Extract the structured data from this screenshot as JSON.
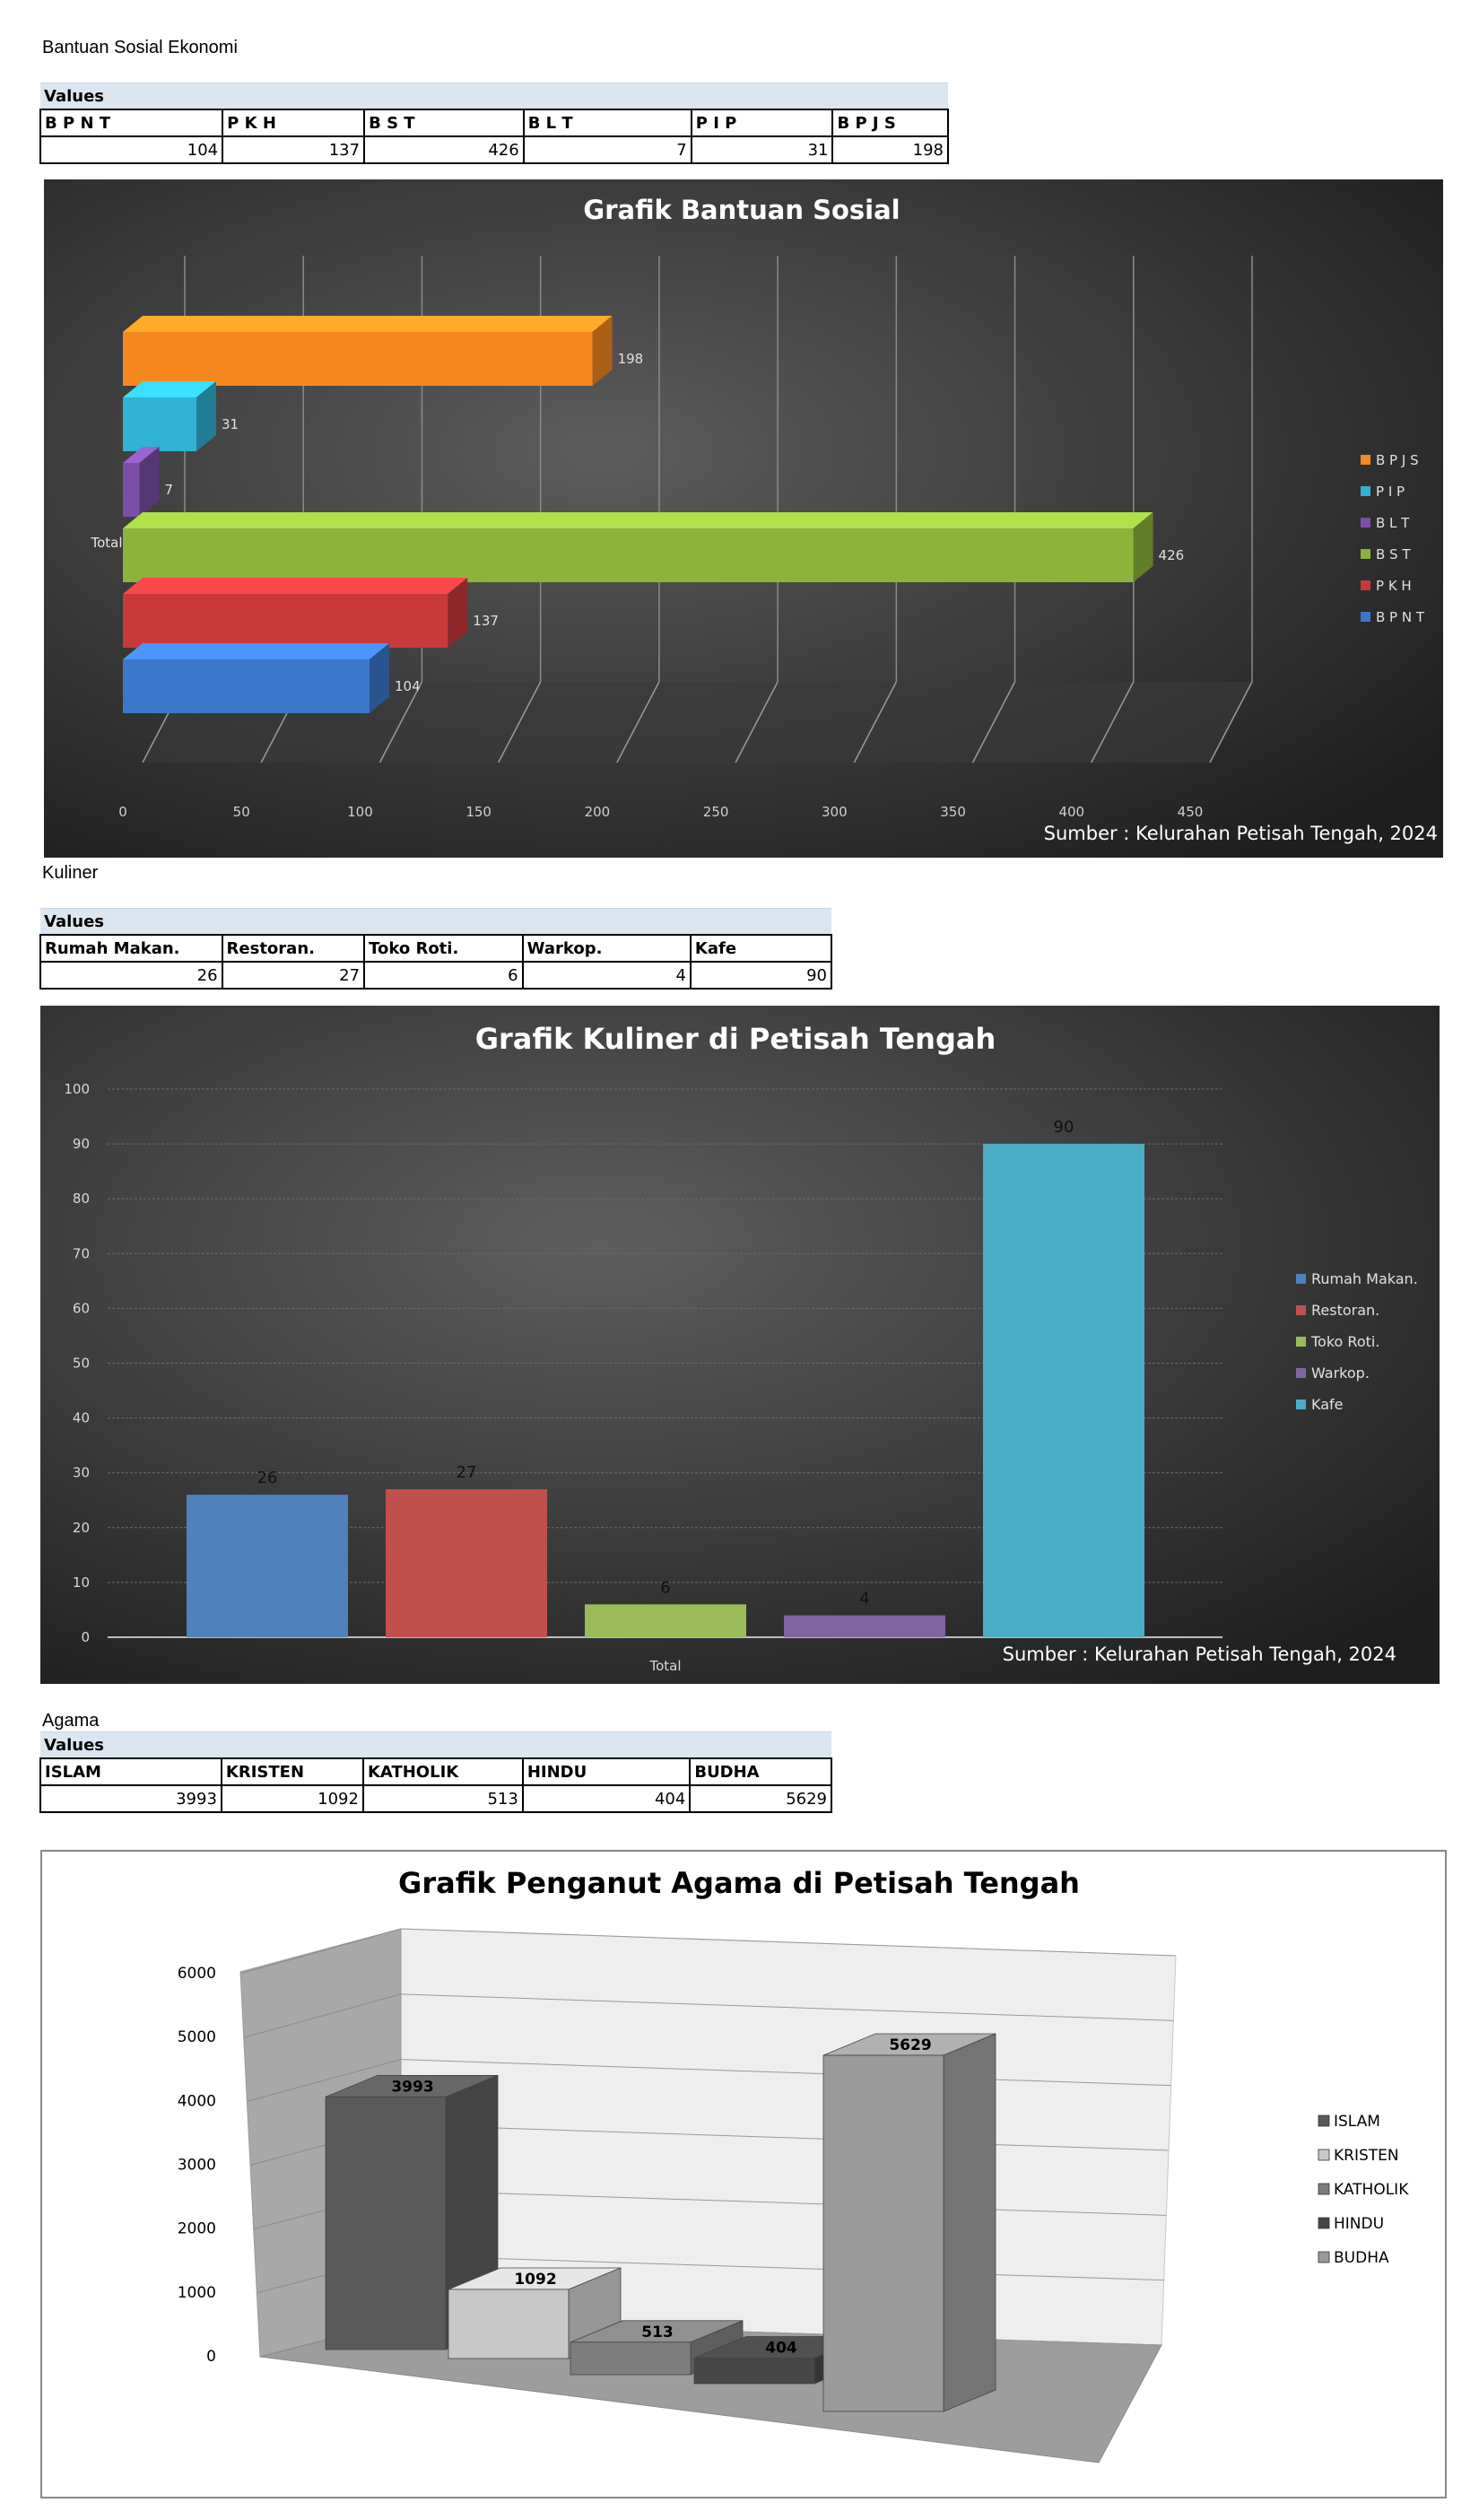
{
  "sections": [
    {
      "title": "Bantuan Sosial Ekonomi",
      "values_label": "Values",
      "headers": [
        "B P N T",
        "P K H",
        "B S T",
        "B L T",
        "P I P",
        "B P J S"
      ],
      "values": [
        "104",
        "137",
        "426",
        "7",
        "31",
        "198"
      ]
    },
    {
      "title": "Kuliner",
      "values_label": "Values",
      "headers": [
        "Rumah Makan.",
        "Restoran.",
        "Toko Roti.",
        "Warkop.",
        "Kafe"
      ],
      "values": [
        "26",
        "27",
        "6",
        "4",
        "90"
      ]
    },
    {
      "title": "Agama",
      "values_label": "Values",
      "headers": [
        "ISLAM",
        "KRISTEN",
        "KATHOLIK",
        "HINDU",
        "BUDHA"
      ],
      "values": [
        "3993",
        "1092",
        "513",
        "404",
        "5629"
      ]
    }
  ],
  "chart_data": [
    {
      "type": "bar",
      "orientation": "horizontal",
      "title": "Grafik Bantuan Sosial",
      "category_label": "Total",
      "series": [
        {
          "name": "B P N T",
          "values": [
            104
          ],
          "color": "#3b78c9"
        },
        {
          "name": "P K H",
          "values": [
            137
          ],
          "color": "#c8393b"
        },
        {
          "name": "B S T",
          "values": [
            426
          ],
          "color": "#8cb43a"
        },
        {
          "name": "B L T",
          "values": [
            7
          ],
          "color": "#7a4fa8"
        },
        {
          "name": "P I P",
          "values": [
            31
          ],
          "color": "#2fb2d6"
        },
        {
          "name": "B P J S",
          "values": [
            198
          ],
          "color": "#f5891f"
        }
      ],
      "xlim": [
        0,
        450
      ],
      "xticks": [
        "0",
        "50",
        "100",
        "150",
        "200",
        "250",
        "300",
        "350",
        "400",
        "450"
      ],
      "grid": true,
      "legend": "right",
      "source": "Sumber : Kelurahan Petisah Tengah, 2024"
    },
    {
      "type": "bar",
      "title": "Grafik Kuliner di Petisah Tengah",
      "category_label": "Total",
      "series": [
        {
          "name": "Rumah Makan.",
          "values": [
            26
          ],
          "color": "#4f81bd"
        },
        {
          "name": "Restoran.",
          "values": [
            27
          ],
          "color": "#c0504d"
        },
        {
          "name": "Toko Roti.",
          "values": [
            6
          ],
          "color": "#9bbb59"
        },
        {
          "name": "Warkop.",
          "values": [
            4
          ],
          "color": "#8064a2"
        },
        {
          "name": "Kafe",
          "values": [
            90
          ],
          "color": "#4bacc6"
        }
      ],
      "ylim": [
        0,
        100
      ],
      "yticks": [
        "0",
        "10",
        "20",
        "30",
        "40",
        "50",
        "60",
        "70",
        "80",
        "90",
        "100"
      ],
      "grid": true,
      "legend": "right",
      "source": "Sumber : Kelurahan Petisah Tengah, 2024"
    },
    {
      "type": "bar",
      "style": "3d-columns",
      "title": "Grafik Penganut Agama di Petisah Tengah",
      "series": [
        {
          "name": "ISLAM",
          "values": [
            3993
          ],
          "color": "#5a5a5a"
        },
        {
          "name": "KRISTEN",
          "values": [
            1092
          ],
          "color": "#c8c8c8"
        },
        {
          "name": "KATHOLIK",
          "values": [
            513
          ],
          "color": "#7d7d7d"
        },
        {
          "name": "HINDU",
          "values": [
            404
          ],
          "color": "#464646"
        },
        {
          "name": "BUDHA",
          "values": [
            5629
          ],
          "color": "#9a9a9a"
        }
      ],
      "ylim": [
        0,
        6000
      ],
      "yticks": [
        "0",
        "1000",
        "2000",
        "3000",
        "4000",
        "5000",
        "6000"
      ],
      "grid": true,
      "legend": "right"
    }
  ]
}
